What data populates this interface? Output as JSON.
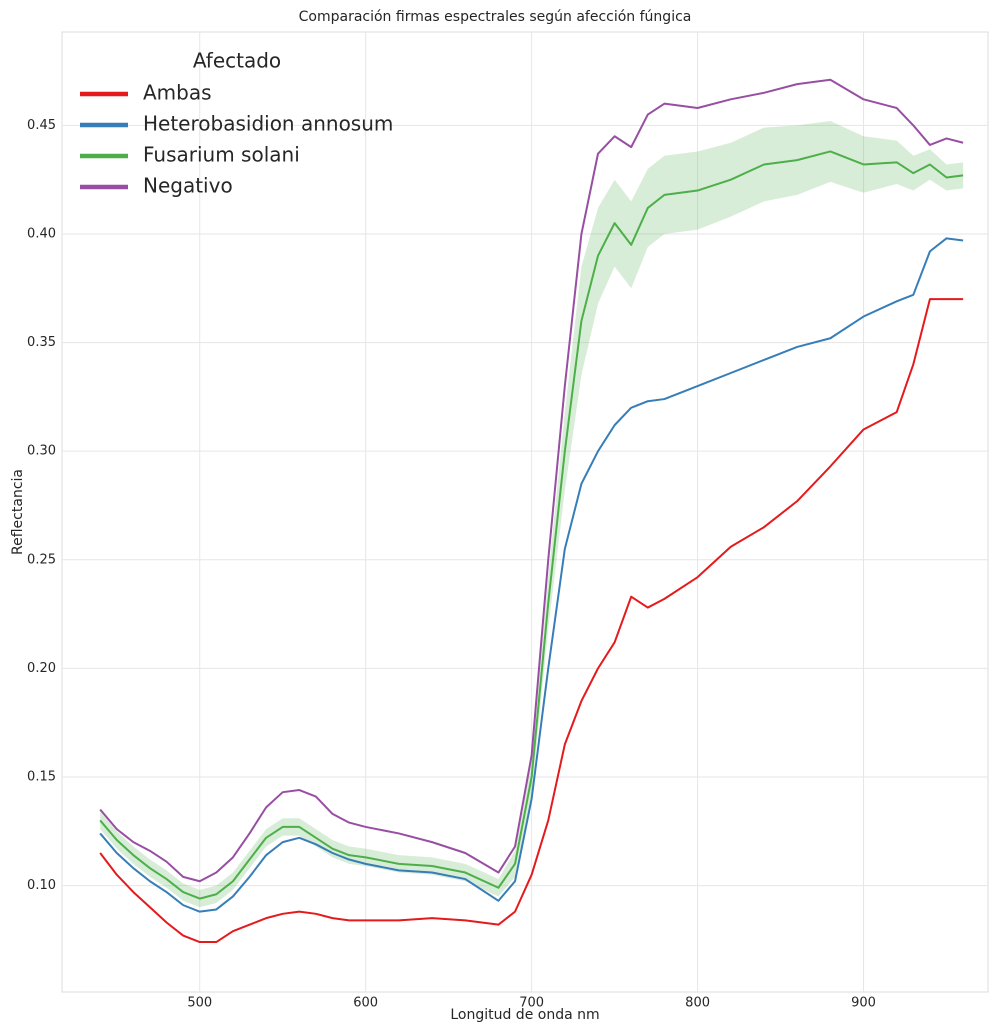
{
  "chart_data": {
    "type": "line",
    "title": "Comparación firmas espectrales según afección fúngica",
    "x_label": "Longitud de onda nm",
    "y_label": "Reflectancia",
    "legend_title": "Afectado",
    "legend": "upper left",
    "grid": true,
    "xlim": [
      417,
      975
    ],
    "ylim": [
      0.051,
      0.493
    ],
    "xticks": [
      500,
      600,
      700,
      800,
      900
    ],
    "yticks": [
      {
        "value": 0.1,
        "label": "0.10"
      },
      0.15,
      {
        "value": 0.2,
        "label": "0.20"
      },
      0.25,
      {
        "value": 0.3,
        "label": "0.30"
      },
      0.35,
      {
        "value": 0.4,
        "label": "0.40"
      },
      0.45
    ],
    "x": [
      440,
      450,
      460,
      470,
      480,
      490,
      500,
      510,
      520,
      530,
      540,
      550,
      560,
      570,
      580,
      590,
      600,
      620,
      640,
      660,
      680,
      690,
      700,
      710,
      720,
      730,
      740,
      750,
      760,
      770,
      780,
      800,
      820,
      840,
      860,
      880,
      900,
      920,
      930,
      940,
      950,
      960
    ],
    "series": [
      {
        "name": "Ambas",
        "color": "#e41a1c",
        "values": [
          0.115,
          0.105,
          0.097,
          0.09,
          0.083,
          0.077,
          0.074,
          0.074,
          0.079,
          0.082,
          0.085,
          0.087,
          0.088,
          0.087,
          0.085,
          0.084,
          0.084,
          0.084,
          0.085,
          0.084,
          0.082,
          0.088,
          0.105,
          0.13,
          0.165,
          0.185,
          0.2,
          0.212,
          0.233,
          0.228,
          0.232,
          0.242,
          0.256,
          0.265,
          0.277,
          0.293,
          0.31,
          0.318,
          0.34,
          0.37,
          0.37,
          0.37
        ]
      },
      {
        "name": "Heterobasidion annosum",
        "color": "#377eb8",
        "values": [
          0.124,
          0.115,
          0.108,
          0.102,
          0.097,
          0.091,
          0.088,
          0.089,
          0.095,
          0.104,
          0.114,
          0.12,
          0.122,
          0.119,
          0.115,
          0.112,
          0.11,
          0.107,
          0.106,
          0.103,
          0.093,
          0.102,
          0.14,
          0.2,
          0.255,
          0.285,
          0.3,
          0.312,
          0.32,
          0.323,
          0.324,
          0.33,
          0.336,
          0.342,
          0.348,
          0.352,
          0.362,
          0.369,
          0.372,
          0.392,
          0.398,
          0.397
        ]
      },
      {
        "name": "Fusarium solani",
        "color": "#4daf4a",
        "values": [
          0.13,
          0.121,
          0.114,
          0.108,
          0.103,
          0.097,
          0.094,
          0.096,
          0.102,
          0.112,
          0.122,
          0.127,
          0.127,
          0.122,
          0.117,
          0.114,
          0.113,
          0.11,
          0.109,
          0.106,
          0.099,
          0.11,
          0.15,
          0.23,
          0.3,
          0.36,
          0.39,
          0.405,
          0.395,
          0.412,
          0.418,
          0.42,
          0.425,
          0.432,
          0.434,
          0.438,
          0.432,
          0.433,
          0.428,
          0.432,
          0.426,
          0.427
        ],
        "lower": [
          0.126,
          0.117,
          0.11,
          0.104,
          0.099,
          0.093,
          0.09,
          0.092,
          0.098,
          0.108,
          0.118,
          0.123,
          0.123,
          0.118,
          0.113,
          0.11,
          0.109,
          0.106,
          0.105,
          0.102,
          0.095,
          0.104,
          0.142,
          0.218,
          0.282,
          0.335,
          0.368,
          0.385,
          0.375,
          0.394,
          0.4,
          0.402,
          0.408,
          0.415,
          0.418,
          0.424,
          0.419,
          0.423,
          0.42,
          0.425,
          0.42,
          0.421
        ],
        "upper": [
          0.134,
          0.125,
          0.118,
          0.112,
          0.107,
          0.101,
          0.098,
          0.1,
          0.106,
          0.116,
          0.126,
          0.131,
          0.131,
          0.126,
          0.121,
          0.118,
          0.117,
          0.114,
          0.113,
          0.11,
          0.103,
          0.116,
          0.158,
          0.242,
          0.318,
          0.385,
          0.412,
          0.425,
          0.415,
          0.43,
          0.436,
          0.438,
          0.442,
          0.449,
          0.45,
          0.452,
          0.445,
          0.443,
          0.436,
          0.439,
          0.432,
          0.433
        ]
      },
      {
        "name": "Negativo",
        "color": "#984ea3",
        "values": [
          0.135,
          0.126,
          0.12,
          0.116,
          0.111,
          0.104,
          0.102,
          0.106,
          0.113,
          0.124,
          0.136,
          0.143,
          0.144,
          0.141,
          0.133,
          0.129,
          0.127,
          0.124,
          0.12,
          0.115,
          0.106,
          0.118,
          0.16,
          0.25,
          0.33,
          0.4,
          0.437,
          0.445,
          0.44,
          0.455,
          0.46,
          0.458,
          0.462,
          0.465,
          0.469,
          0.471,
          0.462,
          0.458,
          0.45,
          0.441,
          0.444,
          0.442
        ]
      }
    ]
  }
}
